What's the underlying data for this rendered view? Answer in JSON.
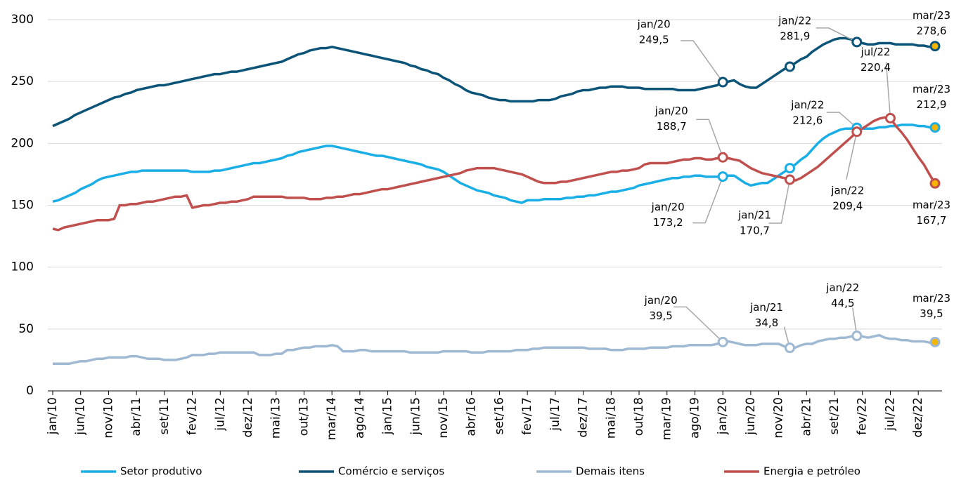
{
  "chart_data": {
    "type": "line",
    "categories": [
      "jan/10",
      null,
      null,
      null,
      null,
      "jun/10",
      null,
      null,
      null,
      null,
      "nov/10",
      null,
      null,
      null,
      null,
      "abr/11",
      null,
      null,
      null,
      null,
      "set/11",
      null,
      null,
      null,
      null,
      "fev/12",
      null,
      null,
      null,
      null,
      "jul/12",
      null,
      null,
      null,
      null,
      "dez/12",
      null,
      null,
      null,
      null,
      "mai/13",
      null,
      null,
      null,
      null,
      "out/13",
      null,
      null,
      null,
      null,
      "mar/14",
      null,
      null,
      null,
      null,
      "ago/14",
      null,
      null,
      null,
      null,
      "jan/15",
      null,
      null,
      null,
      null,
      "jun/15",
      null,
      null,
      null,
      null,
      "nov/15",
      null,
      null,
      null,
      null,
      "abr/16",
      null,
      null,
      null,
      null,
      "set/16",
      null,
      null,
      null,
      null,
      "fev/17",
      null,
      null,
      null,
      null,
      "jul/17",
      null,
      null,
      null,
      null,
      "dez/17",
      null,
      null,
      null,
      null,
      "mai/18",
      null,
      null,
      null,
      null,
      "out/18",
      null,
      null,
      null,
      null,
      "mar/19",
      null,
      null,
      null,
      null,
      "ago/19",
      null,
      null,
      null,
      null,
      "jan/20",
      null,
      null,
      null,
      null,
      "jun/20",
      null,
      null,
      null,
      null,
      "nov/20",
      null,
      null,
      null,
      null,
      "abr/21",
      null,
      null,
      null,
      null,
      "set/21",
      null,
      null,
      null,
      null,
      "fev/22",
      null,
      null,
      null,
      null,
      "jul/22",
      null,
      null,
      null,
      null,
      "dez/22",
      null,
      null,
      null
    ],
    "ylim": [
      0,
      300
    ],
    "yticks": [
      0,
      50,
      100,
      150,
      200,
      250,
      300
    ],
    "grid": true,
    "marker_fill": "#ffffff",
    "last_marker_fill": "#f5b400",
    "series": [
      {
        "name": "Setor produtivo",
        "color": "#1aaee6",
        "values": [
          153,
          154,
          156,
          158,
          160,
          163,
          165,
          167,
          170,
          172,
          173,
          174,
          175,
          176,
          177,
          177,
          178,
          178,
          178,
          178,
          178,
          178,
          178,
          178,
          178,
          177,
          177,
          177,
          177,
          178,
          178,
          179,
          180,
          181,
          182,
          183,
          184,
          184,
          185,
          186,
          187,
          188,
          190,
          191,
          193,
          194,
          195,
          196,
          197,
          198,
          198,
          197,
          196,
          195,
          194,
          193,
          192,
          191,
          190,
          190,
          189,
          188,
          187,
          186,
          185,
          184,
          183,
          181,
          180,
          179,
          177,
          174,
          171,
          168,
          166,
          164,
          162,
          161,
          160,
          158,
          157,
          156,
          154,
          153,
          152,
          154,
          154,
          154,
          155,
          155,
          155,
          155,
          156,
          156,
          157,
          157,
          158,
          158,
          159,
          160,
          161,
          161,
          162,
          163,
          164,
          166,
          167,
          168,
          169,
          170,
          171,
          172,
          172,
          173,
          173,
          174,
          174,
          173,
          173,
          173,
          173.2,
          174,
          174,
          171,
          168,
          166,
          167,
          168,
          168,
          171,
          174,
          177,
          180,
          183,
          187,
          190,
          195,
          200,
          204,
          207,
          209,
          211,
          212,
          212,
          212.6,
          212,
          212,
          212,
          213,
          213,
          214,
          214,
          215,
          215,
          215,
          214,
          214,
          213,
          212.9
        ],
        "annotations": [
          {
            "index": 120,
            "date": "jan/20",
            "label": "173,2"
          },
          {
            "index": 132
          },
          {
            "index": 144,
            "date": "jan/22",
            "label": "212,6"
          },
          {
            "index": 158,
            "date": "mar/23",
            "label": "212,9"
          }
        ]
      },
      {
        "name": "Comércio e serviços",
        "color": "#0b5478",
        "values": [
          214,
          216,
          218,
          220,
          223,
          225,
          227,
          229,
          231,
          233,
          235,
          237,
          238,
          240,
          241,
          243,
          244,
          245,
          246,
          247,
          247,
          248,
          249,
          250,
          251,
          252,
          253,
          254,
          255,
          256,
          256,
          257,
          258,
          258,
          259,
          260,
          261,
          262,
          263,
          264,
          265,
          266,
          268,
          270,
          272,
          273,
          275,
          276,
          277,
          277,
          278,
          277,
          276,
          275,
          274,
          273,
          272,
          271,
          270,
          269,
          268,
          267,
          266,
          265,
          263,
          262,
          260,
          259,
          257,
          256,
          253,
          251,
          248,
          246,
          243,
          241,
          240,
          239,
          237,
          236,
          235,
          235,
          234,
          234,
          234,
          234,
          234,
          235,
          235,
          235,
          236,
          238,
          239,
          240,
          242,
          243,
          243,
          244,
          245,
          245,
          246,
          246,
          246,
          245,
          245,
          245,
          244,
          244,
          244,
          244,
          244,
          244,
          243,
          243,
          243,
          243,
          244,
          245,
          246,
          247,
          249.5,
          250,
          251,
          248,
          246,
          245,
          245,
          248,
          251,
          254,
          257,
          260,
          262,
          265,
          268,
          270,
          274,
          277,
          280,
          282,
          284,
          285,
          285,
          284,
          281.9,
          281,
          280,
          280,
          281,
          281,
          281,
          280,
          280,
          280,
          280,
          279,
          279,
          278,
          278.6
        ],
        "annotations": [
          {
            "index": 120,
            "date": "jan/20",
            "label": "249,5"
          },
          {
            "index": 132
          },
          {
            "index": 144,
            "date": "jan/22",
            "label": "281,9"
          },
          {
            "index": 158,
            "date": "mar/23",
            "label": "278,6"
          }
        ]
      },
      {
        "name": "Demais itens",
        "color": "#9fb9d3",
        "values": [
          22,
          22,
          22,
          22,
          23,
          24,
          24,
          25,
          26,
          26,
          27,
          27,
          27,
          27,
          28,
          28,
          27,
          26,
          26,
          26,
          25,
          25,
          25,
          26,
          27,
          29,
          29,
          29,
          30,
          30,
          31,
          31,
          31,
          31,
          31,
          31,
          31,
          29,
          29,
          29,
          30,
          30,
          33,
          33,
          34,
          35,
          35,
          36,
          36,
          36,
          37,
          36,
          32,
          32,
          32,
          33,
          33,
          32,
          32,
          32,
          32,
          32,
          32,
          32,
          31,
          31,
          31,
          31,
          31,
          31,
          32,
          32,
          32,
          32,
          32,
          31,
          31,
          31,
          32,
          32,
          32,
          32,
          32,
          33,
          33,
          33,
          34,
          34,
          35,
          35,
          35,
          35,
          35,
          35,
          35,
          35,
          34,
          34,
          34,
          34,
          33,
          33,
          33,
          34,
          34,
          34,
          34,
          35,
          35,
          35,
          35,
          36,
          36,
          36,
          37,
          37,
          37,
          37,
          37,
          38,
          39.5,
          40,
          39,
          38,
          37,
          37,
          37,
          38,
          38,
          38,
          38,
          36,
          34.8,
          35,
          37,
          38,
          38,
          40,
          41,
          42,
          42,
          43,
          43,
          44,
          44.5,
          44,
          43,
          44,
          45,
          43,
          42,
          42,
          41,
          41,
          40,
          40,
          40,
          39,
          39.5
        ],
        "annotations": [
          {
            "index": 120,
            "date": "jan/20",
            "label": "39,5"
          },
          {
            "index": 132,
            "date": "jan/21",
            "label": "34,8"
          },
          {
            "index": 144,
            "date": "jan/22",
            "label": "44,5"
          },
          {
            "index": 158,
            "date": "mar/23",
            "label": "39,5"
          }
        ]
      },
      {
        "name": "Energia e petróleo",
        "color": "#c0504d",
        "values": [
          131,
          130,
          132,
          133,
          134,
          135,
          136,
          137,
          138,
          138,
          138,
          139,
          150,
          150,
          151,
          151,
          152,
          153,
          153,
          154,
          155,
          156,
          157,
          157,
          158,
          148,
          149,
          150,
          150,
          151,
          152,
          152,
          153,
          153,
          154,
          155,
          157,
          157,
          157,
          157,
          157,
          157,
          156,
          156,
          156,
          156,
          155,
          155,
          155,
          156,
          156,
          157,
          157,
          158,
          159,
          159,
          160,
          161,
          162,
          163,
          163,
          164,
          165,
          166,
          167,
          168,
          169,
          170,
          171,
          172,
          173,
          174,
          175,
          176,
          178,
          179,
          180,
          180,
          180,
          180,
          179,
          178,
          177,
          176,
          175,
          173,
          171,
          169,
          168,
          168,
          168,
          169,
          169,
          170,
          171,
          172,
          173,
          174,
          175,
          176,
          177,
          177,
          178,
          178,
          179,
          180,
          183,
          184,
          184,
          184,
          184,
          185,
          186,
          187,
          187,
          188,
          188,
          187,
          187,
          188,
          188.7,
          188,
          187,
          186,
          183,
          180,
          178,
          176,
          175,
          174,
          173,
          172,
          170.7,
          170,
          172,
          175,
          178,
          181,
          185,
          189,
          193,
          197,
          201,
          205,
          209.4,
          212,
          215,
          218,
          220,
          221,
          220.4,
          214,
          209,
          203,
          196,
          189,
          183,
          175,
          167.7
        ],
        "annotations": [
          {
            "index": 120,
            "date": "jan/20",
            "label": "188,7"
          },
          {
            "index": 132,
            "date": "jan/21",
            "label": "170,7"
          },
          {
            "index": 144,
            "date": "jan/22",
            "label": "209,4"
          },
          {
            "index": 150,
            "date": "jul/22",
            "label": "220,4"
          },
          {
            "index": 158,
            "date": "mar/23",
            "label": "167,7"
          }
        ]
      }
    ]
  }
}
